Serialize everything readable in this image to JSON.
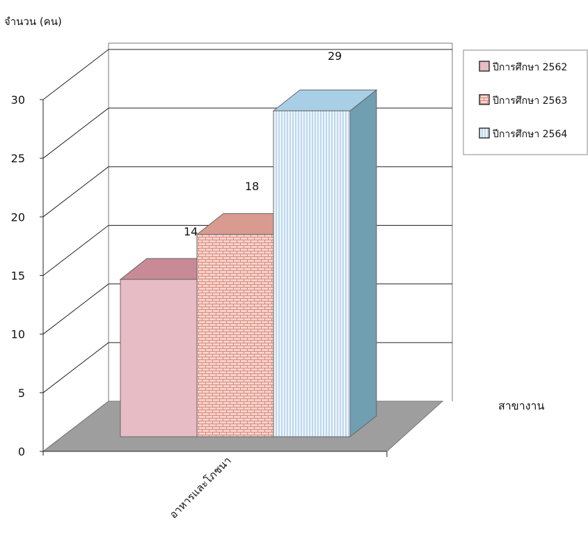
{
  "chart_data": {
    "type": "bar",
    "title": "",
    "ylabel": "จำนวน (คน)",
    "xlabel": "สาขางาน",
    "ylim": [
      0,
      30
    ],
    "yticks": [
      0,
      5,
      10,
      15,
      20,
      25,
      30
    ],
    "categories": [
      "อาหารและโภชนา"
    ],
    "series": [
      {
        "name": "ปีการศึกษา 2562",
        "values": [
          14
        ],
        "color": "#e8bcc4",
        "top_color": "#c98a98",
        "side_color": "#b57b88",
        "pattern": "solid"
      },
      {
        "name": "ปีการศึกษา 2563",
        "values": [
          18
        ],
        "color": "#f3c6bd",
        "top_color": "#d99a90",
        "side_color": "#c98a80",
        "pattern": "bricks"
      },
      {
        "name": "ปีการศึกษา 2564",
        "values": [
          29
        ],
        "color": "#dcecf8",
        "top_color": "#a9cfe6",
        "side_color": "#6f9fb0",
        "pattern": "vertical-lines"
      }
    ],
    "data_labels": [
      "14",
      "18",
      "29"
    ],
    "grid": true,
    "legend": "right",
    "three_d": true,
    "floor_color": "#9e9e9e"
  }
}
